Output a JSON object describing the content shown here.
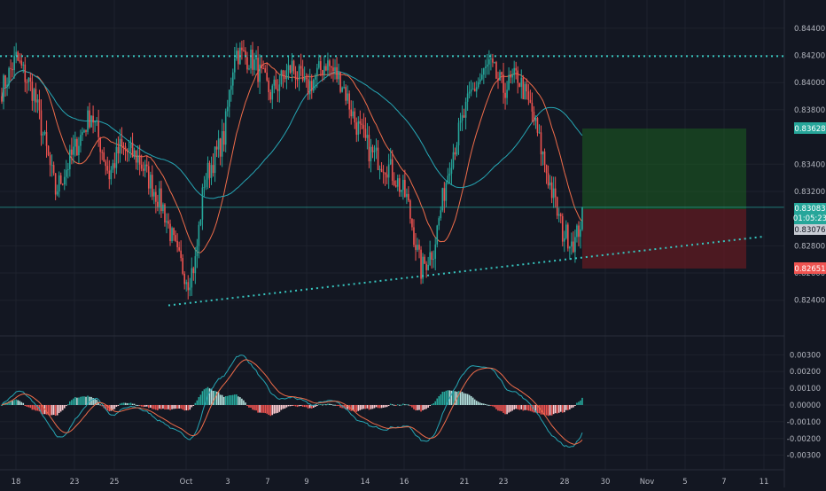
{
  "chart_data": {
    "type": "candlestick",
    "price_axis": {
      "ticks": [
        "0.84400",
        "0.84200",
        "0.84000",
        "0.83800",
        "0.83400",
        "0.83200",
        "0.82800",
        "0.82600",
        "0.82400"
      ],
      "ylim": [
        0.8232,
        0.8449
      ]
    },
    "price_labels": {
      "target": "0.83628",
      "last_price": "0.83083",
      "countdown": "01:05:23",
      "entry": "0.83076",
      "stop": "0.82651"
    },
    "oscillator_axis": {
      "ticks": [
        "0.00300",
        "0.00200",
        "0.00100",
        "0.00000",
        "-0.00100",
        "-0.00200",
        "-0.00300"
      ],
      "ylim": [
        -0.0036,
        0.0036
      ]
    },
    "x_axis": {
      "ticks": [
        "18",
        "23",
        "25",
        "Oct",
        "3",
        "7",
        "9",
        "14",
        "16",
        "21",
        "23",
        "28",
        "30",
        "Nov",
        "5",
        "7",
        "11"
      ]
    },
    "colors": {
      "background": "#131722",
      "up": "#26a69a",
      "down": "#ef5350",
      "line_fast": "#ef6c4a",
      "line_slow": "#26a6b4",
      "trendline": "#37c6c0",
      "profit_zone": "#1b5e20",
      "loss_zone": "#6b1a22"
    }
  }
}
